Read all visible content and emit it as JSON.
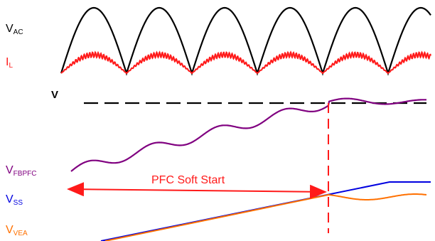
{
  "colors": {
    "ac": "#000000",
    "il": "#ff1a1a",
    "reference": "#000000",
    "vfbpfc": "#800080",
    "vss": "#0000e0",
    "vvea": "#ff7000",
    "marker": "#ff1a1a"
  },
  "labels": {
    "vac": {
      "main": "V",
      "sub": "AC"
    },
    "il": {
      "main": "I",
      "sub": "L"
    },
    "v_ref": "V",
    "vfbpfc": {
      "main": "V",
      "sub": "FBPFC"
    },
    "vss": {
      "main": "V",
      "sub": "SS"
    },
    "vvea": {
      "main": "V",
      "sub": "VEA"
    }
  },
  "annotation": {
    "text": "PFC Soft Start"
  }
}
